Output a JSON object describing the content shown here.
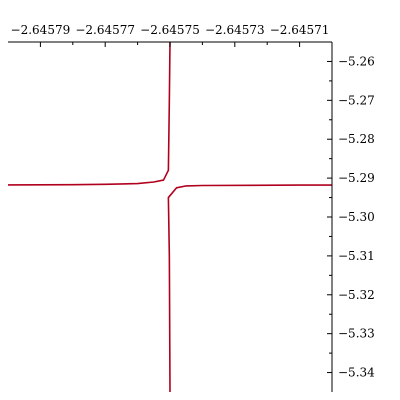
{
  "chart_data": {
    "type": "line",
    "title": "",
    "xlabel": "",
    "ylabel": "",
    "grid": false,
    "x_axis_position": "top",
    "y_axis_position": "right",
    "xlim": [
      -2.6458,
      -2.6457
    ],
    "ylim": [
      -5.345,
      -5.255
    ],
    "x_ticks": [
      {
        "value": -2.64579,
        "label": "−2.64579"
      },
      {
        "value": -2.64577,
        "label": "−2.64577"
      },
      {
        "value": -2.64575,
        "label": "−2.64575"
      },
      {
        "value": -2.64573,
        "label": "−2.64573"
      },
      {
        "value": -2.64571,
        "label": "−2.64571"
      }
    ],
    "y_ticks": [
      {
        "value": -5.26,
        "label": "−5.26"
      },
      {
        "value": -5.27,
        "label": "−5.27"
      },
      {
        "value": -5.28,
        "label": "−5.28"
      },
      {
        "value": -5.29,
        "label": "−5.29"
      },
      {
        "value": -5.3,
        "label": "−5.30"
      },
      {
        "value": -5.31,
        "label": "−5.31"
      },
      {
        "value": -5.32,
        "label": "−5.32"
      },
      {
        "value": -5.33,
        "label": "−5.33"
      },
      {
        "value": -5.34,
        "label": "−5.34"
      }
    ],
    "series": [
      {
        "color": "#b0001e",
        "points": [
          [
            -2.64581,
            -5.2918
          ],
          [
            -2.64578,
            -5.2917
          ],
          [
            -2.64577,
            -5.2916
          ],
          [
            -2.64576,
            -5.2914
          ],
          [
            -2.645755,
            -5.291
          ],
          [
            -2.645752,
            -5.2905
          ],
          [
            -2.6457505,
            -5.288
          ],
          [
            -2.6457502,
            -5.27
          ],
          [
            -2.64575,
            -5.255
          ]
        ]
      },
      {
        "color": "#b0001e",
        "points": [
          [
            -2.64575,
            -5.345
          ],
          [
            -2.6457502,
            -5.31
          ],
          [
            -2.6457505,
            -5.295
          ],
          [
            -2.645748,
            -5.2925
          ],
          [
            -2.645745,
            -5.292
          ],
          [
            -2.64574,
            -5.2919
          ],
          [
            -2.64571,
            -5.2918
          ],
          [
            -2.645685,
            -5.2918
          ]
        ]
      }
    ]
  }
}
